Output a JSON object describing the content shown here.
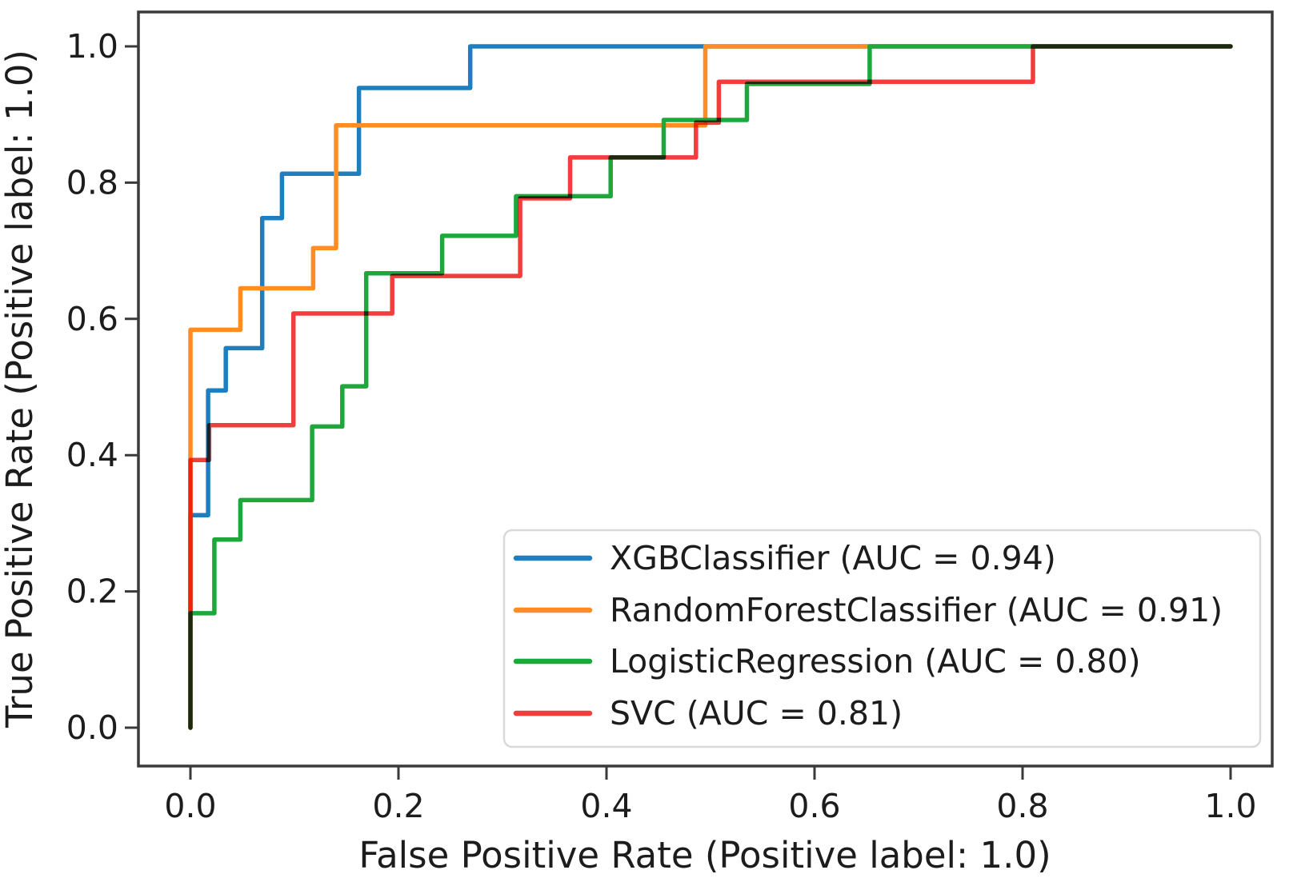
{
  "figure": {
    "kind": "roc-curve-comparison-plot",
    "background_color": "#ffffff",
    "spine_color": "#3a3a3a",
    "text_color": "#1c1c1c"
  },
  "chart_data": {
    "type": "line",
    "subtype": "roc-step-curves",
    "title": "",
    "xlabel": "False Positive Rate (Positive label: 1.0)",
    "ylabel": "True Positive Rate (Positive label: 1.0)",
    "xlim": [
      -0.05,
      1.04
    ],
    "ylim": [
      -0.062,
      1.05
    ],
    "grid": false,
    "legend_position": "lower right",
    "x_tick_values": [
      0.0,
      0.2,
      0.4,
      0.6,
      0.8,
      1.0
    ],
    "y_tick_values": [
      0.0,
      0.2,
      0.4,
      0.6,
      0.8,
      1.0
    ],
    "x_tick_labels": [
      "0.0",
      "0.2",
      "0.4",
      "0.6",
      "0.8",
      "1.0"
    ],
    "y_tick_labels": [
      "0.0",
      "0.2",
      "0.4",
      "0.6",
      "0.8",
      "1.0"
    ],
    "series": [
      {
        "name": "XGBClassifier",
        "label": "XGBClassifier (AUC = 0.94)",
        "auc": 0.94,
        "color": "#1e7fc0",
        "points": [
          [
            0,
            0
          ],
          [
            0,
            0.312
          ],
          [
            0.017,
            0.312
          ],
          [
            0.017,
            0.495
          ],
          [
            0.034,
            0.495
          ],
          [
            0.034,
            0.557
          ],
          [
            0.069,
            0.557
          ],
          [
            0.069,
            0.748
          ],
          [
            0.088,
            0.748
          ],
          [
            0.088,
            0.813
          ],
          [
            0.162,
            0.813
          ],
          [
            0.162,
            0.939
          ],
          [
            0.269,
            0.939
          ],
          [
            0.269,
            1
          ],
          [
            1,
            1
          ]
        ]
      },
      {
        "name": "RandomForestClassifier",
        "label": "RandomForestClassifier (AUC = 0.91)",
        "auc": 0.91,
        "color": "#ff8d22",
        "points": [
          [
            0,
            0
          ],
          [
            0,
            0.584
          ],
          [
            0.048,
            0.584
          ],
          [
            0.048,
            0.645
          ],
          [
            0.118,
            0.645
          ],
          [
            0.118,
            0.704
          ],
          [
            0.14,
            0.704
          ],
          [
            0.14,
            0.884
          ],
          [
            0.495,
            0.884
          ],
          [
            0.495,
            1
          ],
          [
            1,
            1
          ]
        ]
      },
      {
        "name": "LogisticRegression",
        "label": "LogisticRegression (AUC = 0.80)",
        "auc": 0.8,
        "color": "#1ea83c",
        "points": [
          [
            0,
            0
          ],
          [
            0,
            0.168
          ],
          [
            0.023,
            0.168
          ],
          [
            0.023,
            0.276
          ],
          [
            0.048,
            0.276
          ],
          [
            0.048,
            0.334
          ],
          [
            0.117,
            0.334
          ],
          [
            0.117,
            0.442
          ],
          [
            0.146,
            0.442
          ],
          [
            0.146,
            0.501
          ],
          [
            0.169,
            0.501
          ],
          [
            0.169,
            0.667
          ],
          [
            0.242,
            0.667
          ],
          [
            0.242,
            0.722
          ],
          [
            0.313,
            0.722
          ],
          [
            0.313,
            0.78
          ],
          [
            0.404,
            0.78
          ],
          [
            0.404,
            0.837
          ],
          [
            0.455,
            0.837
          ],
          [
            0.455,
            0.892
          ],
          [
            0.535,
            0.892
          ],
          [
            0.535,
            0.945
          ],
          [
            0.653,
            0.945
          ],
          [
            0.653,
            1
          ],
          [
            1,
            1
          ]
        ]
      },
      {
        "name": "SVC",
        "label": "SVC (AUC = 0.81)",
        "auc": 0.81,
        "color": "#f23d3d",
        "points": [
          [
            0,
            0
          ],
          [
            0,
            0.393
          ],
          [
            0.018,
            0.393
          ],
          [
            0.018,
            0.444
          ],
          [
            0.099,
            0.444
          ],
          [
            0.099,
            0.608
          ],
          [
            0.194,
            0.608
          ],
          [
            0.194,
            0.663
          ],
          [
            0.317,
            0.663
          ],
          [
            0.317,
            0.777
          ],
          [
            0.365,
            0.777
          ],
          [
            0.365,
            0.837
          ],
          [
            0.486,
            0.837
          ],
          [
            0.486,
            0.888
          ],
          [
            0.508,
            0.888
          ],
          [
            0.508,
            0.948
          ],
          [
            0.81,
            0.948
          ],
          [
            0.81,
            1
          ],
          [
            1,
            1
          ]
        ]
      }
    ]
  }
}
